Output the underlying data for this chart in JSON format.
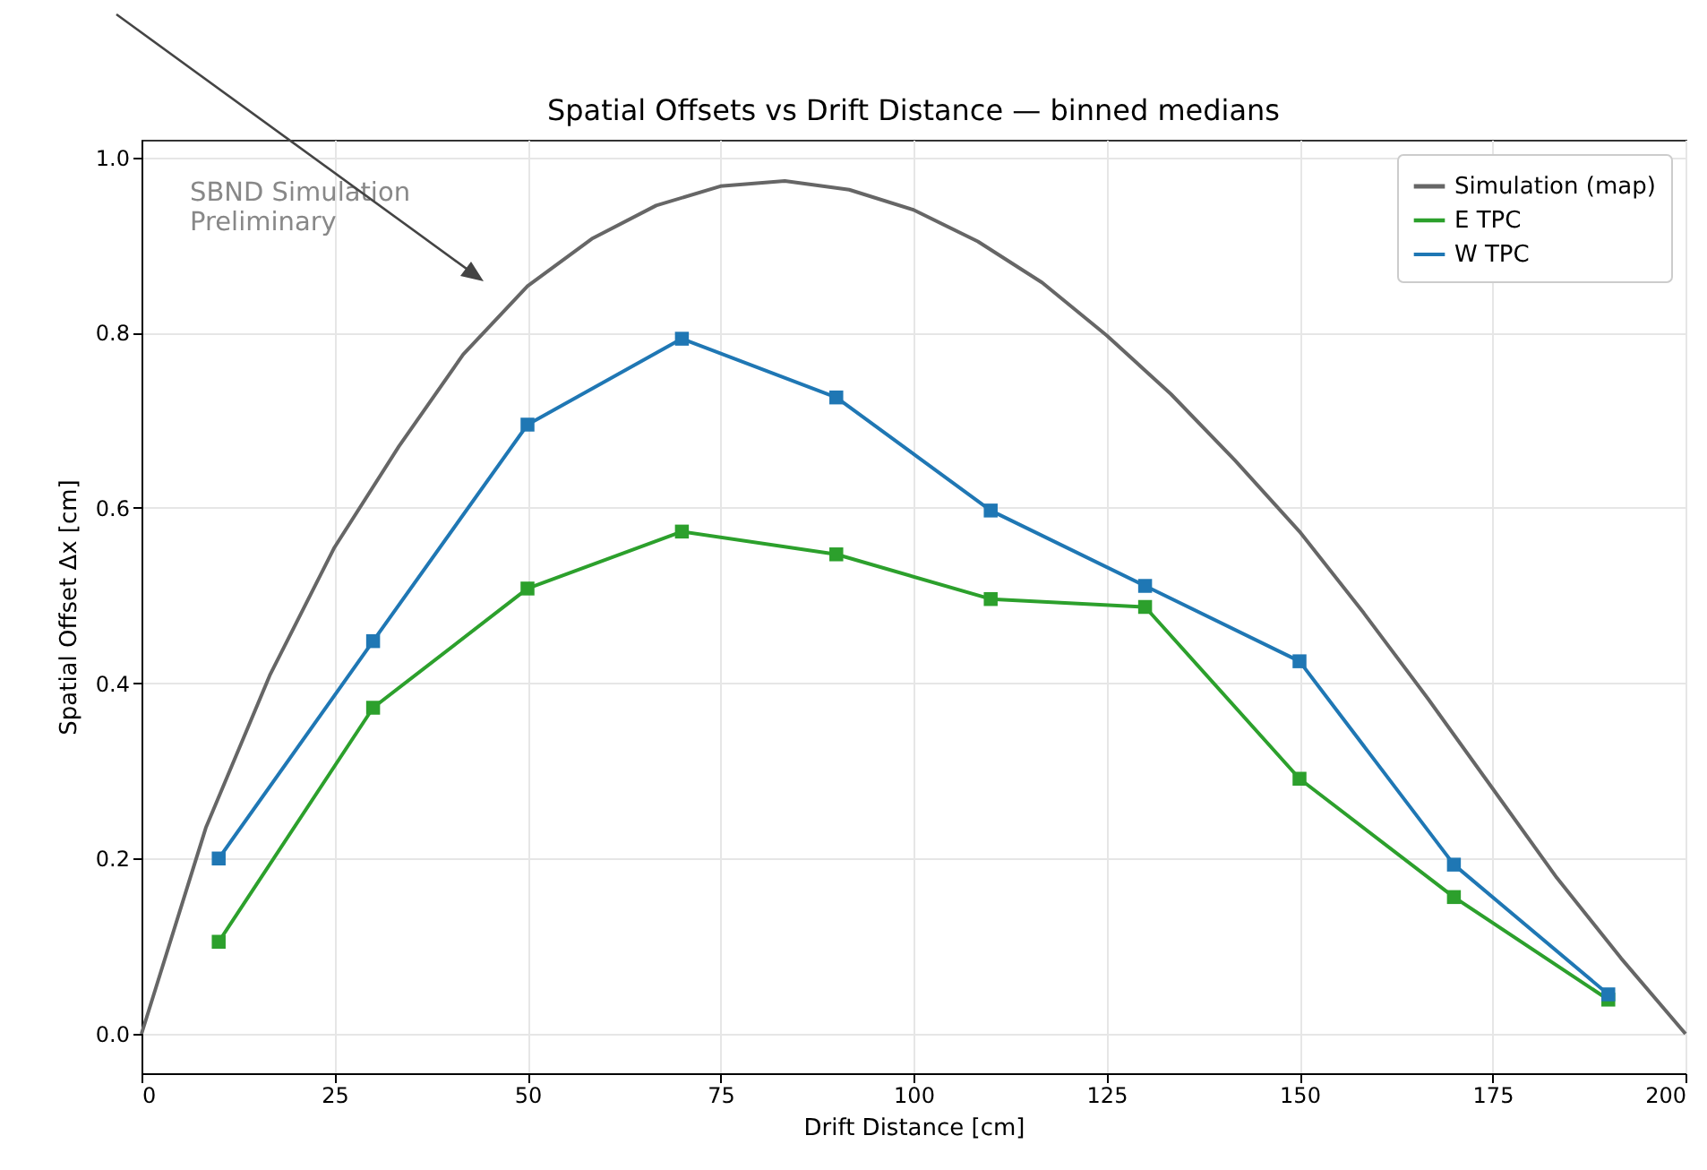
{
  "chart_data": {
    "type": "line",
    "title": "Spatial Offsets vs Drift Distance — binned medians",
    "xlabel": "Drift Distance [cm]",
    "ylabel": "Spatial Offset Δx [cm]",
    "annotations": [
      "SBND Simulation\nPreliminary"
    ],
    "xlim": [
      0,
      200
    ],
    "ylim": [
      -0.045,
      1.02
    ],
    "xticks": [
      0,
      25,
      50,
      75,
      100,
      125,
      150,
      175,
      {
        "value": 200,
        "label": "200"
      }
    ],
    "yticks": [
      {
        "value": 0,
        "label": "0.0"
      },
      {
        "value": 0.2,
        "label": "0.2"
      },
      {
        "value": 0.4,
        "label": "0.4"
      },
      {
        "value": 0.6,
        "label": "0.6"
      },
      {
        "value": 0.8,
        "label": "0.8"
      },
      {
        "value": 1,
        "label": "1.0"
      }
    ],
    "grid": true,
    "legend": "top right",
    "line_style": "solid",
    "series": [
      {
        "name": "Simulation (map)",
        "color": "#666666",
        "marker": "none",
        "x": [
          0,
          8.33,
          16.67,
          25,
          33.33,
          41.67,
          50,
          58.33,
          66.67,
          75,
          83.33,
          91.67,
          100,
          108.33,
          116.67,
          125,
          133.33,
          141.67,
          150,
          158.33,
          166.67,
          175,
          183.33,
          191.67,
          200
        ],
        "values": [
          0,
          0.235,
          0.41,
          0.555,
          0.67,
          0.775,
          0.853,
          0.907,
          0.945,
          0.967,
          0.973,
          0.963,
          0.94,
          0.904,
          0.857,
          0.797,
          0.73,
          0.654,
          0.573,
          0.48,
          0.382,
          0.28,
          0.178,
          0.086,
          0
        ]
      },
      {
        "name": "E TPC",
        "color": "#2ca02c",
        "marker": "square",
        "x": [
          10,
          30,
          50,
          70,
          90,
          110,
          130,
          150,
          170,
          190
        ],
        "values": [
          0.105,
          0.372,
          0.508,
          0.573,
          0.547,
          0.496,
          0.487,
          0.291,
          0.156,
          0.039
        ]
      },
      {
        "name": "W TPC",
        "color": "#1f77b4",
        "marker": "square",
        "x": [
          10,
          30,
          50,
          70,
          90,
          110,
          130,
          150,
          170,
          190
        ],
        "values": [
          0.2,
          0.448,
          0.695,
          0.793,
          0.726,
          0.597,
          0.511,
          0.425,
          0.193,
          0.045
        ]
      }
    ]
  }
}
